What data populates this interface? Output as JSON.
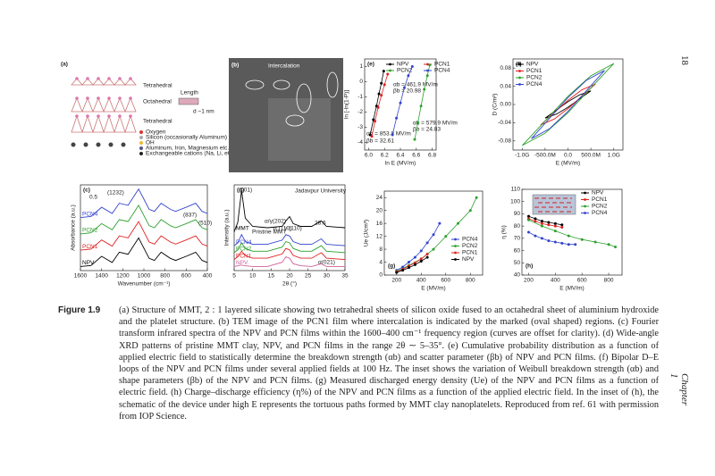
{
  "page_number": "18",
  "running_head": "Chapter 1",
  "figure": {
    "label": "Figure 1.9",
    "caption": "(a) Structure of MMT, 2 : 1 layered silicate showing two tetrahedral sheets of silicon oxide fused to an octahedral sheet of aluminium hydroxide and the platelet structure. (b) TEM image of the PCN1 film where intercalation is indicated by the marked (oval shaped) regions. (c) Fourier transform infrared spectra of the NPV and PCN films within the 1600–400 cm⁻¹ frequency region (curves are offset for clarity). (d) Wide-angle XRD patterns of pristine MMT clay, NPV, and PCN films in the range 2θ ∼ 5–35°. (e) Cumulative probability distribution as a function of applied electric field to statistically determine the breakdown strength (αb) and scatter parameter (βb) of NPV and PCN films. (f) Bipolar D–E loops of the NPV and PCN films under several applied fields at 100 Hz. The inset shows the variation of Weibull breakdown strength (αb) and shape parameters (βb) of the NPV and PCN films. (g) Measured discharged energy density (Ue) of the NPV and PCN films as a function of electric field. (h) Charge–discharge efficiency (η%) of the NPV and PCN films as a function of the applied electric field. In the inset of (h), the schematic of the device under high E represents the tortuous paths formed by MMT clay nanoplatelets. Reproduced from ref. 61 with permission from IOP Science.",
    "panels": [
      {
        "tag": "(a)",
        "type": "diagram",
        "labels": [
          "Tetrahedral",
          "Octahedral",
          "Tetrahedral",
          "Length",
          "d ~1 nm",
          "Oxygen",
          "Silicon (occasionally Aluminum)",
          "OH",
          "Aluminum, Iron, Magnesium etc.",
          "Exchangeable cations (Na, Li, etc.)"
        ]
      },
      {
        "tag": "(b)",
        "type": "image",
        "labels": [
          "Intercalation"
        ]
      },
      {
        "tag": "(c)",
        "type": "line",
        "xlabel": "Wavenumber (cm⁻¹)",
        "ylabel": "Absorbance (a.u.)",
        "xlim": [
          1600,
          400
        ],
        "ylim": [
          0,
          4.2
        ],
        "xticks": [
          1600,
          1400,
          1200,
          1000,
          800,
          600,
          400
        ],
        "yticks": [],
        "annotations": [
          "(1232)",
          "(837)",
          "(510)",
          "0.5"
        ],
        "x": [
          1600,
          1500,
          1400,
          1300,
          1232,
          1150,
          1050,
          1000,
          950,
          900,
          837,
          750,
          700,
          600,
          510,
          450,
          400
        ],
        "series": [
          {
            "name": "PCN4",
            "color": "#3344cc",
            "values": [
              2.6,
              2.65,
              3.1,
              2.8,
              3.3,
              3.2,
              4.0,
              3.5,
              3.0,
              2.9,
              3.3,
              3.0,
              2.9,
              3.1,
              3.3,
              2.9,
              2.8
            ]
          },
          {
            "name": "PCN2",
            "color": "#2ca02c",
            "values": [
              1.8,
              1.85,
              2.3,
              2.0,
              2.5,
              2.4,
              3.2,
              2.7,
              2.2,
              2.1,
              2.5,
              2.2,
              2.1,
              2.3,
              2.5,
              2.1,
              2.0
            ]
          },
          {
            "name": "PCN1",
            "color": "#e02020",
            "values": [
              1.0,
              1.05,
              1.5,
              1.2,
              1.7,
              1.6,
              2.4,
              1.9,
              1.4,
              1.3,
              1.7,
              1.4,
              1.3,
              1.5,
              1.7,
              1.3,
              1.2
            ]
          },
          {
            "name": "NPV",
            "color": "#000000",
            "values": [
              0.2,
              0.25,
              0.7,
              0.4,
              0.9,
              0.8,
              1.6,
              1.1,
              0.6,
              0.5,
              0.9,
              0.6,
              0.5,
              0.7,
              0.9,
              0.5,
              0.4
            ]
          }
        ]
      },
      {
        "tag": "(d)",
        "type": "line",
        "xlabel": "2θ (°)",
        "ylabel": "Intensity (a.u.)",
        "xlim": [
          5,
          35
        ],
        "ylim": [
          0,
          6.2
        ],
        "xticks": [
          5,
          10,
          15,
          20,
          25,
          30,
          35
        ],
        "yticks": [],
        "annotations": [
          "(001)",
          "Pristine MMT",
          "α/γ(202)",
          "α (110)",
          "γ (110)",
          "28.6",
          "α(021)",
          "Jadavpur University"
        ],
        "x": [
          5,
          6,
          7,
          8,
          10,
          14,
          18,
          19,
          20,
          21,
          23,
          26,
          28.6,
          30,
          35
        ],
        "series": [
          {
            "name": "MMT",
            "color": "#000000",
            "values": [
              2.8,
              3.5,
              5.8,
              3.8,
              3.2,
              3.1,
              3.2,
              3.6,
              3.9,
              3.4,
              3.2,
              3.2,
              3.6,
              3.2,
              3.1
            ]
          },
          {
            "name": "PCN4",
            "color": "#3344cc",
            "values": [
              1.8,
              2.0,
              2.6,
              2.1,
              1.9,
              1.9,
              2.2,
              2.6,
              2.5,
              2.1,
              1.9,
              1.9,
              2.3,
              1.9,
              1.8
            ]
          },
          {
            "name": "PCN2",
            "color": "#2ca02c",
            "values": [
              1.3,
              1.5,
              2.0,
              1.6,
              1.4,
              1.4,
              1.7,
              2.1,
              2.0,
              1.6,
              1.4,
              1.4,
              1.8,
              1.4,
              1.3
            ]
          },
          {
            "name": "PCN1",
            "color": "#e02020",
            "values": [
              0.8,
              1.0,
              1.4,
              1.1,
              0.9,
              0.9,
              1.2,
              1.6,
              1.5,
              1.1,
              0.9,
              0.9,
              1.3,
              0.9,
              0.8
            ]
          },
          {
            "name": "NPV",
            "color": "#d0609a",
            "values": [
              0.3,
              0.35,
              0.4,
              0.35,
              0.3,
              0.3,
              0.6,
              1.0,
              0.9,
              0.5,
              0.35,
              0.3,
              0.5,
              0.3,
              0.3
            ]
          }
        ]
      },
      {
        "tag": "(e)",
        "type": "scatter",
        "xlabel": "ln E (MV/m)",
        "ylabel": "ln [-ln(1-P)]",
        "xlim": [
          5.95,
          6.85
        ],
        "ylim": [
          -4.5,
          1.5
        ],
        "xticks": [
          {
            "value": 6,
            "label": "6.0"
          },
          6.2,
          6.4,
          6.6,
          6.8
        ],
        "yticks": [
          1,
          0,
          -1,
          -2,
          -3,
          -4
        ],
        "annotations": [
          "αb = 461.9 MV/m",
          "βb = 20.98",
          "αb = 579.9 MV/m",
          "βb = 24.83",
          "αb = 853.8 MV/m",
          "βb = 32.61"
        ],
        "series": [
          {
            "name": "NPV",
            "color": "#000000",
            "x": [
              6.02,
              6.06,
              6.1,
              6.13,
              6.16,
              6.19
            ],
            "values": [
              -3.5,
              -2.5,
              -1.6,
              -0.8,
              -0.1,
              0.7
            ]
          },
          {
            "name": "PCN1",
            "color": "#e02020",
            "x": [
              6.04,
              6.08,
              6.12,
              6.16,
              6.2,
              6.24
            ],
            "values": [
              -3.6,
              -2.6,
              -1.7,
              -0.9,
              -0.2,
              0.5
            ]
          },
          {
            "name": "PCN2",
            "color": "#2ca02c",
            "x": [
              6.58,
              6.62,
              6.66,
              6.7,
              6.74,
              6.77
            ],
            "values": [
              -3.8,
              -2.7,
              -1.6,
              -0.5,
              0.4,
              1.1
            ]
          },
          {
            "name": "PCN4",
            "color": "#3344cc",
            "x": [
              6.3,
              6.35,
              6.4,
              6.45,
              6.5,
              6.55
            ],
            "values": [
              -3.5,
              -2.4,
              -1.4,
              -0.4,
              0.4,
              1.0
            ]
          }
        ]
      },
      {
        "tag": "(f)",
        "type": "line",
        "xlabel": "E (MV/m)",
        "ylabel": "D (C/m²)",
        "xlim": [
          -1200000000,
          1200000000
        ],
        "ylim": [
          -0.1,
          0.1
        ],
        "xticks": [
          {
            "value": -1000000000,
            "label": "-1.0G"
          },
          {
            "value": -500000000,
            "label": "-500.0M"
          },
          {
            "value": 0,
            "label": "0.0"
          },
          {
            "value": 500000000,
            "label": "500.0M"
          },
          {
            "value": 1000000000,
            "label": "1.0G"
          }
        ],
        "yticks": [
          0.08,
          0.04,
          {
            "value": 0,
            "label": "0.00"
          },
          -0.04,
          -0.08
        ],
        "annotations": [],
        "series": [
          {
            "name": "NPV",
            "color": "#000000",
            "x": [
              -500000000,
              -250000000,
              0,
              250000000,
              500000000,
              250000000,
              0,
              -250000000,
              -500000000
            ],
            "values": [
              -0.03,
              -0.021,
              -0.006,
              0.012,
              0.03,
              0.021,
              0.006,
              -0.012,
              -0.03
            ]
          },
          {
            "name": "PCN1",
            "color": "#e02020",
            "x": [
              -600000000,
              -300000000,
              0,
              300000000,
              600000000,
              300000000,
              0,
              -300000000,
              -600000000
            ],
            "values": [
              -0.045,
              -0.032,
              -0.009,
              0.018,
              0.045,
              0.032,
              0.009,
              -0.018,
              -0.045
            ]
          },
          {
            "name": "PCN2",
            "color": "#2ca02c",
            "x": [
              -1000000000,
              -500000000,
              0,
              500000000,
              1000000000,
              500000000,
              0,
              -500000000,
              -1000000000
            ],
            "values": [
              -0.09,
              -0.063,
              -0.018,
              0.036,
              0.09,
              0.063,
              0.018,
              -0.036,
              -0.09
            ]
          },
          {
            "name": "PCN4",
            "color": "#3344cc",
            "x": [
              -800000000,
              -400000000,
              0,
              400000000,
              800000000,
              400000000,
              0,
              -400000000,
              -800000000
            ],
            "values": [
              -0.075,
              -0.053,
              -0.015,
              0.03,
              0.075,
              0.053,
              0.015,
              -0.03,
              -0.075
            ]
          }
        ]
      },
      {
        "tag": "(g)",
        "type": "scatter",
        "xlabel": "E (MV/m)",
        "ylabel": "Ue (J/cm³)",
        "xlim": [
          100,
          900
        ],
        "ylim": [
          0,
          26
        ],
        "xticks": [
          200,
          400,
          600,
          800
        ],
        "yticks": [
          0,
          4,
          8,
          12,
          16,
          20,
          24
        ],
        "annotations": [],
        "series": [
          {
            "name": "PCN4",
            "color": "#3344cc",
            "x": [
              200,
              250,
              300,
              350,
              400,
              450,
              500,
              550
            ],
            "values": [
              1.5,
              2.5,
              4,
              5.5,
              7.5,
              10,
              12.5,
              16
            ]
          },
          {
            "name": "PCN2",
            "color": "#2ca02c",
            "x": [
              200,
              300,
              400,
              500,
              600,
              700,
              800,
              850
            ],
            "values": [
              1.2,
              3,
              5,
              8,
              12,
              16,
              20,
              24
            ]
          },
          {
            "name": "PCN1",
            "color": "#e02020",
            "x": [
              200,
              250,
              300,
              350,
              400,
              450
            ],
            "values": [
              1,
              1.8,
              2.8,
              3.8,
              5,
              6.5
            ]
          },
          {
            "name": "NPV",
            "color": "#000000",
            "x": [
              200,
              250,
              300,
              350,
              400,
              450
            ],
            "values": [
              0.8,
              1.5,
              2.3,
              3.2,
              4.3,
              5.5
            ]
          }
        ]
      },
      {
        "tag": "(h)",
        "type": "scatter",
        "xlabel": "E (MV/m)",
        "ylabel": "η (%)",
        "xlim": [
          150,
          900
        ],
        "ylim": [
          40,
          110
        ],
        "xticks": [
          200,
          400,
          600,
          800
        ],
        "yticks": [
          40,
          50,
          60,
          70,
          80,
          90,
          100,
          110
        ],
        "annotations": [],
        "series": [
          {
            "name": "NPV",
            "color": "#000000",
            "x": [
              200,
              250,
              300,
              350,
              400,
              450
            ],
            "values": [
              88,
              86,
              84,
              83,
              82,
              81
            ]
          },
          {
            "name": "PCN1",
            "color": "#e02020",
            "x": [
              200,
              250,
              300,
              350,
              400,
              450
            ],
            "values": [
              86,
              84,
              82,
              81,
              80,
              79
            ]
          },
          {
            "name": "PCN2",
            "color": "#2ca02c",
            "x": [
              200,
              300,
              400,
              500,
              600,
              700,
              800,
              850
            ],
            "values": [
              85,
              80,
              76,
              72,
              69,
              67,
              65,
              63
            ]
          },
          {
            "name": "PCN4",
            "color": "#3344cc",
            "x": [
              200,
              250,
              300,
              350,
              400,
              450,
              500,
              550
            ],
            "values": [
              75,
              72,
              70,
              68,
              67,
              66,
              65,
              65
            ]
          }
        ]
      }
    ]
  }
}
